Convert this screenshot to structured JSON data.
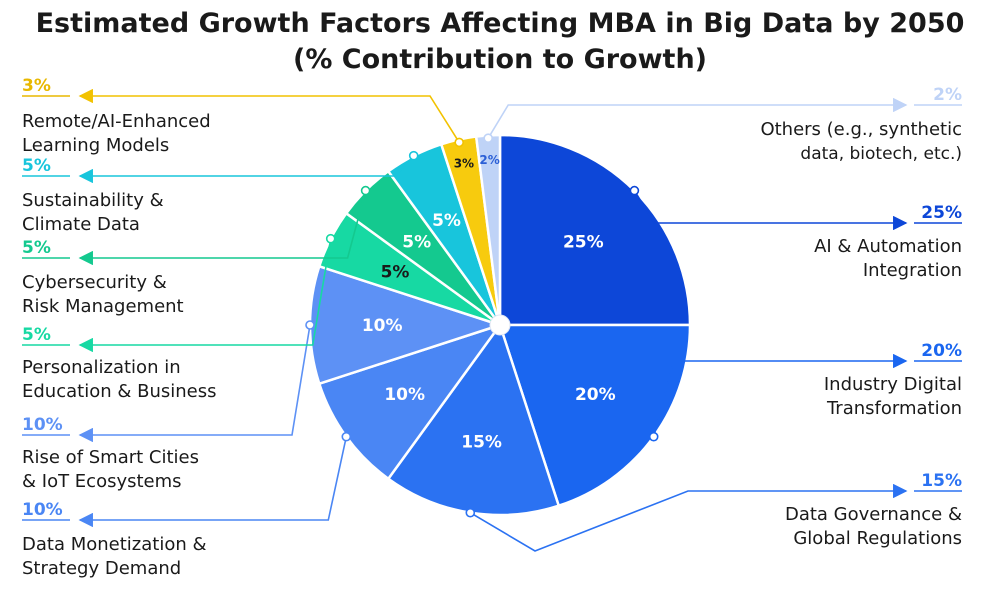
{
  "title": {
    "line1": "Estimated Growth Factors Affecting MBA in Big Data by 2050",
    "line2": "(% Contribution to Growth)"
  },
  "chart_data": {
    "type": "pie",
    "title": "Estimated Growth Factors Affecting MBA in Big Data by 2050 (% Contribution to Growth)",
    "unit": "%",
    "slices": [
      {
        "label": "AI & Automation Integration",
        "lines": [
          "AI & Automation",
          "Integration"
        ],
        "value": 25,
        "display": "25%",
        "color": "#0d47d8",
        "text_color": "#ffffff",
        "side": "right"
      },
      {
        "label": "Industry Digital Transformation",
        "lines": [
          "Industry Digital",
          "Transformation"
        ],
        "value": 20,
        "display": "20%",
        "color": "#1a66f0",
        "text_color": "#ffffff",
        "side": "right"
      },
      {
        "label": "Data Governance & Global Regulations",
        "lines": [
          "Data Governance &",
          "Global Regulations"
        ],
        "value": 15,
        "display": "15%",
        "color": "#2b72f2",
        "text_color": "#ffffff",
        "side": "right"
      },
      {
        "label": "Data Monetization & Strategy Demand",
        "lines": [
          "Data Monetization &",
          "Strategy Demand"
        ],
        "value": 10,
        "display": "10%",
        "color": "#4a86f4",
        "text_color": "#ffffff",
        "side": "left"
      },
      {
        "label": "Rise of Smart Cities & IoT Ecosystems",
        "lines": [
          "Rise of Smart Cities",
          "& IoT Ecosystems"
        ],
        "value": 10,
        "display": "10%",
        "color": "#5d91f5",
        "text_color": "#ffffff",
        "side": "left"
      },
      {
        "label": "Personalization in Education & Business",
        "lines": [
          "Personalization in",
          "Education & Business"
        ],
        "value": 5,
        "display": "5%",
        "color": "#17d9a3",
        "text_color": "#1a1a1a",
        "side": "left"
      },
      {
        "label": "Cybersecurity & Risk Management",
        "lines": [
          "Cybersecurity &",
          "Risk Management"
        ],
        "value": 5,
        "display": "5%",
        "color": "#14c98f",
        "text_color": "#ffffff",
        "side": "left"
      },
      {
        "label": "Sustainability & Climate Data",
        "lines": [
          "Sustainability &",
          "Climate Data"
        ],
        "value": 5,
        "display": "5%",
        "color": "#18c5dc",
        "text_color": "#ffffff",
        "side": "left"
      },
      {
        "label": "Remote/AI-Enhanced Learning Models",
        "lines": [
          "Remote/AI-Enhanced",
          "Learning Models"
        ],
        "value": 3,
        "display": "3%",
        "color": "#f7cb0e",
        "text_color": "#1a1a1a",
        "side": "left"
      },
      {
        "label": "Others (e.g., synthetic data, biotech, etc.)",
        "lines": [
          "Others (e.g., synthetic",
          "data, biotech, etc.)"
        ],
        "value": 2,
        "display": "2%",
        "color": "#bfd3f7",
        "text_color": "#2b5fd6",
        "side": "right",
        "muted": true
      }
    ]
  }
}
